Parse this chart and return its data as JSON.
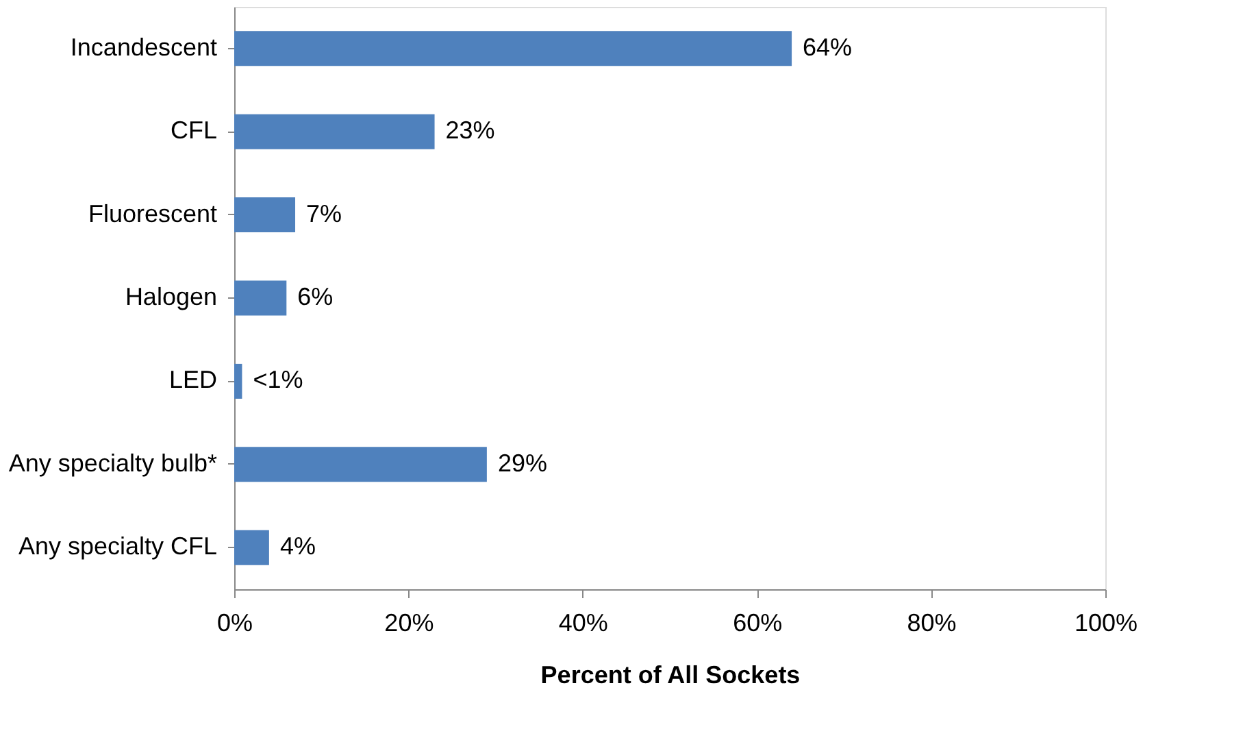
{
  "chart_data": {
    "type": "bar",
    "orientation": "horizontal",
    "xlabel": "Percent of All Sockets",
    "categories": [
      "Incandescent",
      "CFL",
      "Fluorescent",
      "Halogen",
      "LED",
      "Any specialty bulb*",
      "Any specialty CFL"
    ],
    "values": [
      64,
      23,
      7,
      6,
      0.9,
      29,
      4
    ],
    "value_labels": [
      "64%",
      "23%",
      "7%",
      "6%",
      "<1%",
      "29%",
      "4%"
    ],
    "color": "#4f81bd",
    "xlim": [
      0,
      100
    ],
    "xticks": [
      {
        "value": 0,
        "label": "0%"
      },
      {
        "value": 20,
        "label": "20%"
      },
      {
        "value": 40,
        "label": "40%"
      },
      {
        "value": 60,
        "label": "60%"
      },
      {
        "value": 80,
        "label": "80%"
      },
      {
        "value": 100,
        "label": "100%"
      }
    ]
  }
}
